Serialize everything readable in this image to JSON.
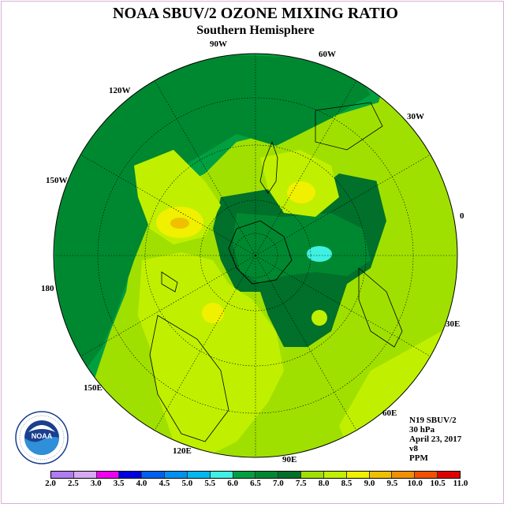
{
  "title": "NOAA SBUV/2 OZONE MIXING RATIO",
  "subtitle": "Southern Hemisphere",
  "longitudes": {
    "w90": "90W",
    "w60": "60W",
    "w120": "120W",
    "w30": "30W",
    "w150": "150W",
    "zero": "0",
    "l180": "180",
    "e30": "30E",
    "e150": "150E",
    "e60": "60E",
    "e120": "120E",
    "e90": "90E"
  },
  "info": {
    "satellite": "N19 SBUV/2",
    "level": "30 hPa",
    "date": "April 23, 2017",
    "version": "v8",
    "units": "PPM"
  },
  "legend": {
    "ticks": [
      "2.0",
      "2.5",
      "3.0",
      "3.5",
      "4.0",
      "4.5",
      "5.0",
      "5.5",
      "6.0",
      "6.5",
      "7.0",
      "7.5",
      "8.0",
      "8.5",
      "9.0",
      "9.5",
      "10.0",
      "10.5",
      "11.0"
    ],
    "colors": [
      "#b07cf0",
      "#d8a8f0",
      "#f000f0",
      "#0000e0",
      "#0060f0",
      "#0090f0",
      "#00b8f0",
      "#40f0e0",
      "#00a040",
      "#008830",
      "#00702a",
      "#a0e000",
      "#c0f000",
      "#f0f000",
      "#f0c000",
      "#f09000",
      "#f05000",
      "#e00000",
      "#a05030"
    ]
  },
  "logo": {
    "text": "NOAA",
    "ring_text": "NATIONAL OCEANIC AND ATMOSPHERIC ADMINISTRATION"
  }
}
